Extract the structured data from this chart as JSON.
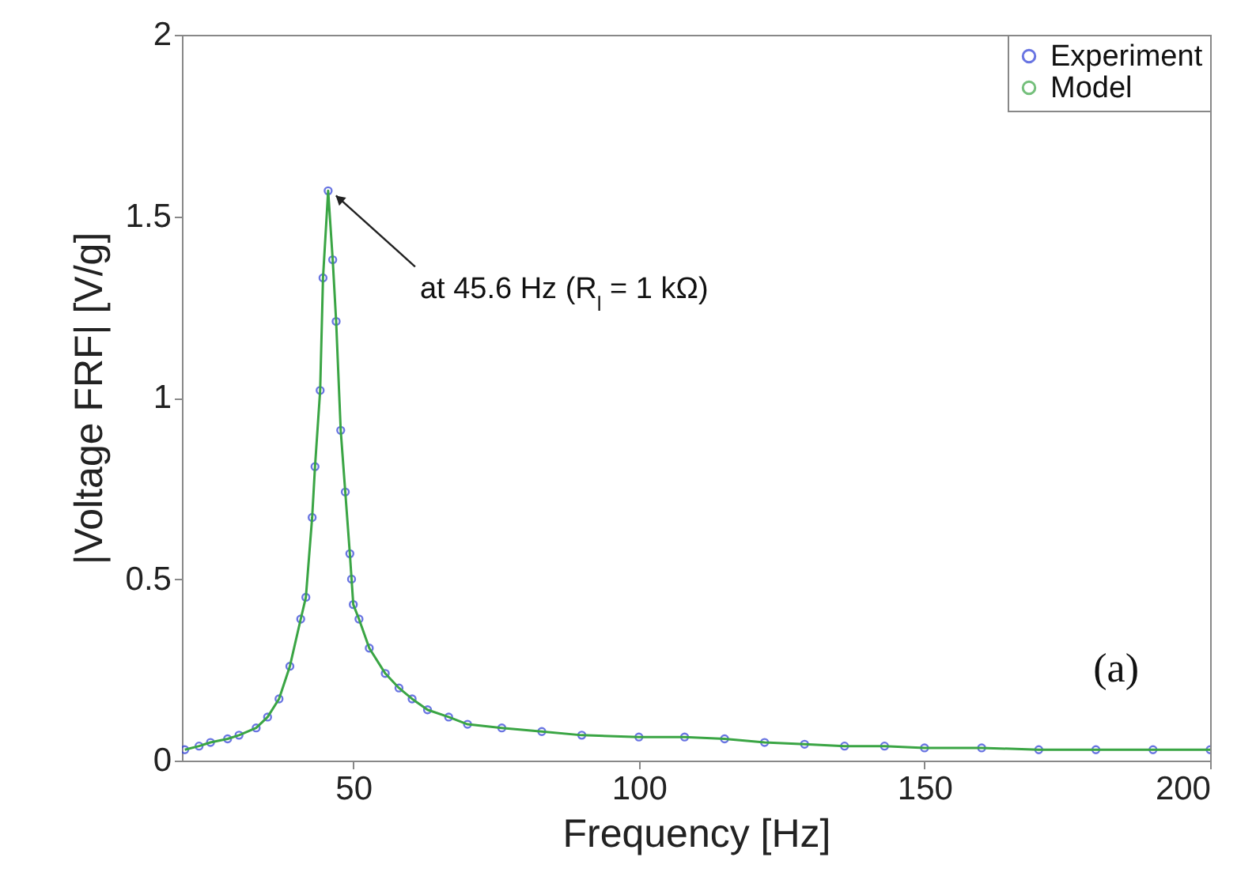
{
  "chart_data": {
    "type": "scatter",
    "xlabel": "Frequency [Hz]",
    "ylabel": "|Voltage FRF| [V/g]",
    "xlim": [
      20,
      200
    ],
    "ylim": [
      0,
      2
    ],
    "xticks": [
      50,
      100,
      150,
      200
    ],
    "yticks": [
      0,
      0.5,
      1,
      1.5,
      2
    ],
    "legend": "top right",
    "grid": false,
    "x": [
      20.5,
      23,
      25,
      28,
      30,
      33,
      35,
      37,
      38.9,
      40.8,
      41.7,
      42.8,
      43.3,
      44.2,
      44.7,
      45.6,
      46.4,
      47,
      47.8,
      48.6,
      49.4,
      49.7,
      50,
      51,
      52.8,
      55.6,
      58,
      60.3,
      63,
      66.7,
      70,
      76,
      83,
      90,
      100,
      108,
      115,
      122,
      129,
      136,
      143,
      150,
      160,
      170,
      180,
      190,
      200
    ],
    "series": [
      {
        "name": "Experiment",
        "marker": "circle",
        "color": "#2b3bd6",
        "values": [
          0.03,
          0.04,
          0.05,
          0.06,
          0.07,
          0.09,
          0.12,
          0.17,
          0.26,
          0.39,
          0.45,
          0.67,
          0.81,
          1.02,
          1.33,
          1.57,
          1.38,
          1.21,
          0.91,
          0.74,
          0.57,
          0.5,
          0.43,
          0.39,
          0.31,
          0.24,
          0.2,
          0.17,
          0.14,
          0.12,
          0.1,
          0.09,
          0.08,
          0.07,
          0.065,
          0.065,
          0.06,
          0.05,
          0.045,
          0.04,
          0.04,
          0.035,
          0.035,
          0.03,
          0.03,
          0.03,
          0.03
        ]
      },
      {
        "name": "Model",
        "type": "line",
        "marker": "none",
        "color": "#3aa544",
        "values": [
          0.03,
          0.04,
          0.05,
          0.06,
          0.07,
          0.09,
          0.12,
          0.17,
          0.26,
          0.39,
          0.45,
          0.67,
          0.81,
          1.02,
          1.33,
          1.57,
          1.38,
          1.21,
          0.91,
          0.74,
          0.57,
          0.5,
          0.43,
          0.39,
          0.31,
          0.24,
          0.2,
          0.17,
          0.14,
          0.12,
          0.1,
          0.09,
          0.08,
          0.07,
          0.065,
          0.065,
          0.06,
          0.05,
          0.045,
          0.04,
          0.04,
          0.035,
          0.035,
          0.03,
          0.03,
          0.03,
          0.03
        ]
      }
    ],
    "annotations": [
      {
        "text": "at 45.6 Hz (R$_{l}$ = 1 kΩ)",
        "x": 45.6,
        "y": 1.57
      },
      "(a)"
    ]
  }
}
